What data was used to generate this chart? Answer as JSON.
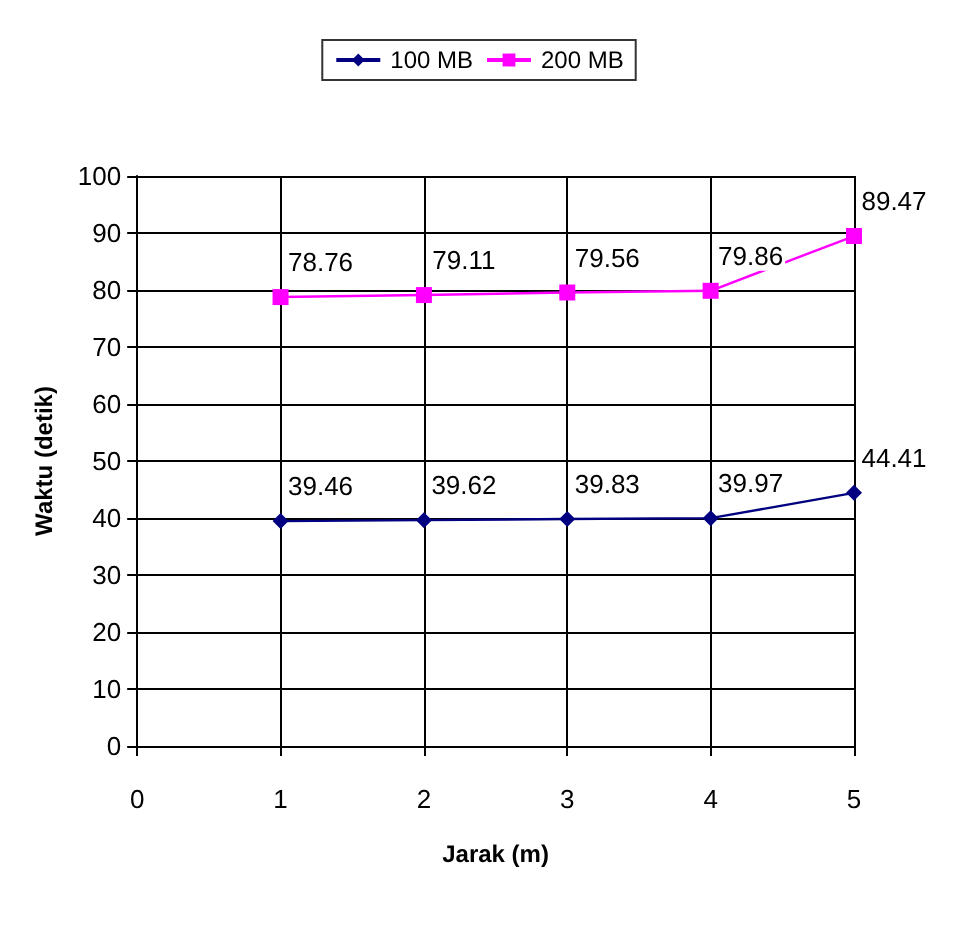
{
  "chart_data": {
    "type": "line",
    "xlabel": "Jarak (m)",
    "ylabel": "Waktu (detik)",
    "x": [
      1,
      2,
      3,
      4,
      5
    ],
    "series": [
      {
        "name": "100 MB",
        "color": "#000080",
        "values": [
          39.46,
          39.62,
          39.83,
          39.97,
          44.41
        ],
        "marker": "diamond"
      },
      {
        "name": "200 MB",
        "color": "#ff00ff",
        "values": [
          78.76,
          79.11,
          79.56,
          79.86,
          89.47
        ],
        "marker": "square"
      }
    ],
    "xlim": [
      0,
      5
    ],
    "xticks": [
      0,
      1,
      2,
      3,
      4,
      5
    ],
    "ylim": [
      0,
      100
    ],
    "yticks": [
      0,
      10,
      20,
      30,
      40,
      50,
      60,
      70,
      80,
      90,
      100
    ],
    "grid": true,
    "legend": "top",
    "data_labels": true
  }
}
